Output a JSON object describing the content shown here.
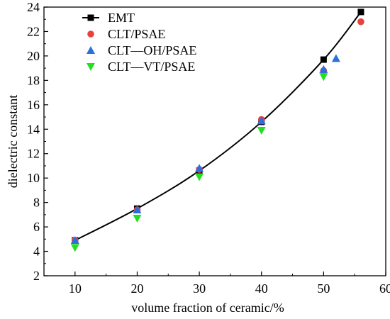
{
  "chart_data": {
    "type": "scatter",
    "xlabel": "volume fraction of ceramic/%",
    "ylabel": "dielectric constant",
    "xlim": [
      5,
      60
    ],
    "ylim": [
      2,
      24
    ],
    "xticks": [
      10,
      20,
      30,
      40,
      50,
      60
    ],
    "yticks": [
      2,
      4,
      6,
      8,
      10,
      12,
      14,
      16,
      18,
      20,
      22,
      24
    ],
    "grid": false,
    "legend_position": "top-left",
    "series": [
      {
        "name": "EMT",
        "marker": "square",
        "line": true,
        "color": "#000000",
        "points": [
          [
            10,
            4.9
          ],
          [
            20,
            7.5
          ],
          [
            30,
            10.6
          ],
          [
            40,
            14.6
          ],
          [
            50,
            19.7
          ],
          [
            56,
            23.6
          ]
        ]
      },
      {
        "name": "CLT/PSAE",
        "marker": "circle",
        "line": false,
        "color": "#e8423f",
        "points": [
          [
            10,
            4.9
          ],
          [
            20,
            7.4
          ],
          [
            30,
            10.7
          ],
          [
            40,
            14.8
          ],
          [
            50,
            18.8
          ],
          [
            56,
            22.8
          ]
        ]
      },
      {
        "name": "CLT—OH/PSAE",
        "marker": "triangle-up",
        "line": false,
        "color": "#2a6fe0",
        "points": [
          [
            10,
            4.9
          ],
          [
            20,
            7.4
          ],
          [
            30,
            10.8
          ],
          [
            40,
            14.7
          ],
          [
            50,
            18.9
          ],
          [
            52,
            19.8
          ]
        ]
      },
      {
        "name": "CLT—VT/PSAE",
        "marker": "triangle-down",
        "line": false,
        "color": "#22e01f",
        "points": [
          [
            10,
            4.3
          ],
          [
            20,
            6.7
          ],
          [
            30,
            10.1
          ],
          [
            40,
            13.9
          ],
          [
            50,
            18.3
          ]
        ]
      }
    ]
  }
}
